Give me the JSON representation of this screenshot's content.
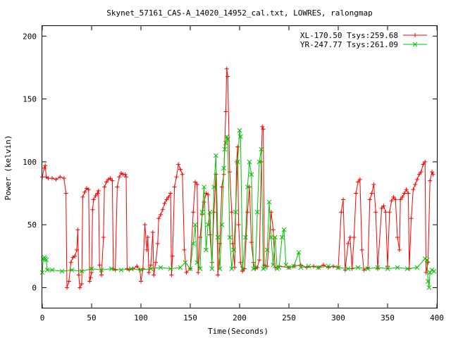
{
  "chart_data": {
    "type": "line",
    "title": "Skynet_57161_CAS-A_14020_14952_cal.txt, LOWRES, ralongmap",
    "xlabel": "Time(Seconds)",
    "ylabel": "Power (kelvin)",
    "xlim": [
      0,
      400
    ],
    "ylim": [
      -16,
      208
    ],
    "x_ticks": [
      0,
      50,
      100,
      150,
      200,
      250,
      300,
      350,
      400
    ],
    "y_ticks": [
      0,
      50,
      100,
      150,
      200
    ],
    "grid": false,
    "legend_position": "top-right",
    "series": [
      {
        "name": "XL-170.50 Tsys:259.68",
        "color": "#ff0000",
        "marker": "plus",
        "points": [
          [
            0,
            88
          ],
          [
            2,
            95
          ],
          [
            3,
            97
          ],
          [
            4,
            88
          ],
          [
            6,
            87
          ],
          [
            10,
            87
          ],
          [
            14,
            86
          ],
          [
            18,
            88
          ],
          [
            22,
            87
          ],
          [
            24,
            75
          ],
          [
            25,
            0
          ],
          [
            27,
            5
          ],
          [
            29,
            20
          ],
          [
            31,
            24
          ],
          [
            33,
            25
          ],
          [
            35,
            30
          ],
          [
            36,
            46
          ],
          [
            37,
            10
          ],
          [
            38,
            0
          ],
          [
            40,
            3
          ],
          [
            41,
            72
          ],
          [
            43,
            76
          ],
          [
            45,
            79
          ],
          [
            47,
            78
          ],
          [
            48,
            5
          ],
          [
            49,
            8
          ],
          [
            50,
            12
          ],
          [
            51,
            62
          ],
          [
            52,
            70
          ],
          [
            54,
            73
          ],
          [
            56,
            75
          ],
          [
            57,
            77
          ],
          [
            58,
            18
          ],
          [
            60,
            10
          ],
          [
            62,
            40
          ],
          [
            63,
            80
          ],
          [
            65,
            84
          ],
          [
            67,
            86
          ],
          [
            69,
            87
          ],
          [
            71,
            85
          ],
          [
            72,
            15
          ],
          [
            74,
            14
          ],
          [
            76,
            80
          ],
          [
            78,
            88
          ],
          [
            80,
            91
          ],
          [
            82,
            90
          ],
          [
            84,
            90
          ],
          [
            85,
            88
          ],
          [
            86,
            15
          ],
          [
            88,
            14
          ],
          [
            92,
            15
          ],
          [
            96,
            17
          ],
          [
            99,
            14
          ],
          [
            100,
            5
          ],
          [
            102,
            15
          ],
          [
            104,
            50
          ],
          [
            106,
            30
          ],
          [
            107,
            40
          ],
          [
            108,
            12
          ],
          [
            110,
            18
          ],
          [
            112,
            44
          ],
          [
            113,
            10
          ],
          [
            115,
            20
          ],
          [
            117,
            35
          ],
          [
            118,
            55
          ],
          [
            120,
            58
          ],
          [
            122,
            62
          ],
          [
            124,
            67
          ],
          [
            126,
            70
          ],
          [
            128,
            72
          ],
          [
            130,
            75
          ],
          [
            131,
            10
          ],
          [
            132,
            25
          ],
          [
            134,
            80
          ],
          [
            136,
            88
          ],
          [
            138,
            98
          ],
          [
            140,
            94
          ],
          [
            142,
            90
          ],
          [
            144,
            30
          ],
          [
            146,
            12
          ],
          [
            150,
            15
          ],
          [
            153,
            60
          ],
          [
            155,
            84
          ],
          [
            157,
            82
          ],
          [
            158,
            12
          ],
          [
            160,
            40
          ],
          [
            162,
            58
          ],
          [
            164,
            68
          ],
          [
            166,
            75
          ],
          [
            168,
            74
          ],
          [
            170,
            42
          ],
          [
            172,
            20
          ],
          [
            174,
            60
          ],
          [
            176,
            90
          ],
          [
            178,
            10
          ],
          [
            180,
            35
          ],
          [
            182,
            80
          ],
          [
            184,
            90
          ],
          [
            186,
            140
          ],
          [
            187,
            174
          ],
          [
            188,
            168
          ],
          [
            190,
            92
          ],
          [
            192,
            60
          ],
          [
            193,
            35
          ],
          [
            195,
            16
          ],
          [
            197,
            100
          ],
          [
            198,
            112
          ],
          [
            199,
            50
          ],
          [
            201,
            20
          ],
          [
            203,
            13
          ],
          [
            205,
            15
          ],
          [
            208,
            60
          ],
          [
            210,
            80
          ],
          [
            212,
            36
          ],
          [
            214,
            20
          ],
          [
            216,
            15
          ],
          [
            218,
            16
          ],
          [
            220,
            22
          ],
          [
            222,
            100
          ],
          [
            223,
            128
          ],
          [
            224,
            126
          ],
          [
            225,
            18
          ],
          [
            228,
            17
          ],
          [
            232,
            60
          ],
          [
            234,
            46
          ],
          [
            236,
            16
          ],
          [
            240,
            17
          ],
          [
            250,
            16
          ],
          [
            255,
            17
          ],
          [
            262,
            18
          ],
          [
            268,
            16
          ],
          [
            275,
            17
          ],
          [
            280,
            16
          ],
          [
            285,
            18
          ],
          [
            290,
            16
          ],
          [
            295,
            17
          ],
          [
            300,
            16
          ],
          [
            303,
            60
          ],
          [
            305,
            70
          ],
          [
            307,
            14
          ],
          [
            310,
            35
          ],
          [
            312,
            40
          ],
          [
            314,
            15
          ],
          [
            316,
            40
          ],
          [
            318,
            75
          ],
          [
            320,
            84
          ],
          [
            322,
            86
          ],
          [
            324,
            30
          ],
          [
            326,
            14
          ],
          [
            330,
            16
          ],
          [
            332,
            70
          ],
          [
            334,
            75
          ],
          [
            336,
            82
          ],
          [
            338,
            60
          ],
          [
            340,
            15
          ],
          [
            344,
            63
          ],
          [
            346,
            65
          ],
          [
            348,
            60
          ],
          [
            350,
            17
          ],
          [
            352,
            60
          ],
          [
            354,
            69
          ],
          [
            356,
            72
          ],
          [
            358,
            70
          ],
          [
            360,
            40
          ],
          [
            362,
            30
          ],
          [
            363,
            70
          ],
          [
            365,
            72
          ],
          [
            367,
            75
          ],
          [
            369,
            78
          ],
          [
            371,
            75
          ],
          [
            372,
            15
          ],
          [
            374,
            55
          ],
          [
            376,
            78
          ],
          [
            378,
            82
          ],
          [
            380,
            86
          ],
          [
            382,
            90
          ],
          [
            384,
            92
          ],
          [
            386,
            98
          ],
          [
            388,
            100
          ],
          [
            389,
            12
          ],
          [
            391,
            20
          ],
          [
            393,
            85
          ],
          [
            395,
            92
          ],
          [
            396,
            90
          ]
        ]
      },
      {
        "name": "YR-247.77 Tsys:261.09",
        "color": "#00c000",
        "marker": "x",
        "points": [
          [
            0,
            12
          ],
          [
            1,
            23
          ],
          [
            2,
            24
          ],
          [
            3,
            23
          ],
          [
            4,
            22
          ],
          [
            5,
            14
          ],
          [
            10,
            14
          ],
          [
            20,
            13
          ],
          [
            30,
            14
          ],
          [
            40,
            13
          ],
          [
            50,
            15
          ],
          [
            60,
            14
          ],
          [
            70,
            15
          ],
          [
            80,
            14
          ],
          [
            90,
            15
          ],
          [
            100,
            14
          ],
          [
            110,
            15
          ],
          [
            120,
            16
          ],
          [
            130,
            15
          ],
          [
            140,
            16
          ],
          [
            145,
            20
          ],
          [
            150,
            15
          ],
          [
            153,
            35
          ],
          [
            155,
            50
          ],
          [
            157,
            20
          ],
          [
            160,
            15
          ],
          [
            162,
            60
          ],
          [
            164,
            80
          ],
          [
            166,
            30
          ],
          [
            168,
            50
          ],
          [
            170,
            60
          ],
          [
            172,
            15
          ],
          [
            174,
            80
          ],
          [
            176,
            105
          ],
          [
            178,
            40
          ],
          [
            180,
            15
          ],
          [
            182,
            50
          ],
          [
            184,
            95
          ],
          [
            185,
            110
          ],
          [
            186,
            115
          ],
          [
            187,
            120
          ],
          [
            188,
            118
          ],
          [
            190,
            40
          ],
          [
            192,
            15
          ],
          [
            194,
            30
          ],
          [
            196,
            60
          ],
          [
            198,
            100
          ],
          [
            200,
            125
          ],
          [
            201,
            120
          ],
          [
            203,
            15
          ],
          [
            206,
            40
          ],
          [
            208,
            80
          ],
          [
            210,
            100
          ],
          [
            212,
            90
          ],
          [
            214,
            15
          ],
          [
            216,
            16
          ],
          [
            218,
            60
          ],
          [
            220,
            100
          ],
          [
            222,
            110
          ],
          [
            224,
            15
          ],
          [
            226,
            16
          ],
          [
            228,
            30
          ],
          [
            230,
            68
          ],
          [
            232,
            40
          ],
          [
            234,
            18
          ],
          [
            236,
            40
          ],
          [
            238,
            15
          ],
          [
            240,
            16
          ],
          [
            243,
            40
          ],
          [
            245,
            46
          ],
          [
            247,
            18
          ],
          [
            250,
            16
          ],
          [
            255,
            17
          ],
          [
            260,
            28
          ],
          [
            262,
            16
          ],
          [
            270,
            17
          ],
          [
            280,
            16
          ],
          [
            290,
            17
          ],
          [
            300,
            16
          ],
          [
            310,
            15
          ],
          [
            320,
            16
          ],
          [
            330,
            15
          ],
          [
            340,
            16
          ],
          [
            350,
            15
          ],
          [
            360,
            16
          ],
          [
            370,
            15
          ],
          [
            380,
            16
          ],
          [
            388,
            23
          ],
          [
            390,
            22
          ],
          [
            391,
            5
          ],
          [
            392,
            0
          ],
          [
            393,
            12
          ],
          [
            395,
            14
          ],
          [
            397,
            13
          ]
        ]
      }
    ]
  }
}
